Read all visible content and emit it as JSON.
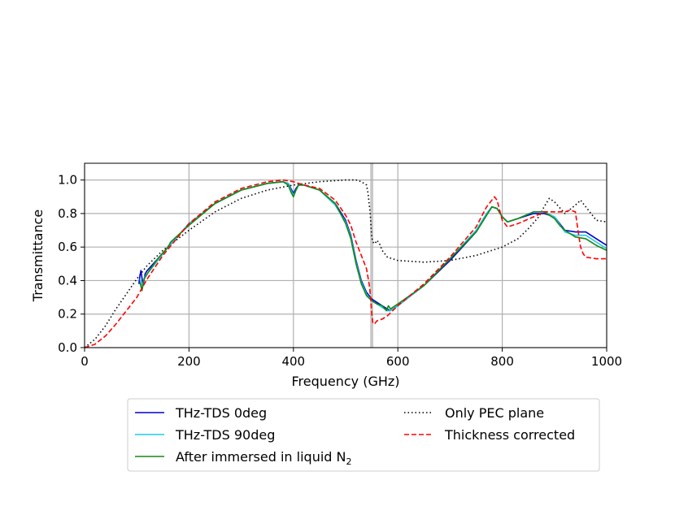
{
  "chart_data": {
    "type": "line",
    "title": "",
    "xlabel": "Frequency (GHz)",
    "ylabel": "Transmittance",
    "xlim": [
      0,
      1000
    ],
    "ylim": [
      0,
      1.1
    ],
    "xticks": [
      "0",
      "200",
      "400",
      "600",
      "800",
      "1000"
    ],
    "yticks": [
      "0.0",
      "0.2",
      "0.4",
      "0.6",
      "0.8",
      "1.0"
    ],
    "grid": true,
    "legend_position": "below",
    "highlight_band_x": [
      547,
      553
    ],
    "series": [
      {
        "name": "THz-TDS 0deg",
        "color": "#0000cd",
        "dash": "solid",
        "x": [
          104,
          106,
          108,
          112,
          116,
          120,
          140,
          160,
          200,
          250,
          300,
          350,
          380,
          390,
          395,
          400,
          405,
          410,
          420,
          450,
          480,
          500,
          510,
          520,
          530,
          540,
          545,
          550,
          560,
          570,
          580,
          585,
          590,
          600,
          650,
          700,
          750,
          770,
          780,
          790,
          800,
          810,
          830,
          860,
          880,
          900,
          920,
          940,
          960,
          980,
          1000
        ],
        "y": [
          0.38,
          0.43,
          0.46,
          0.37,
          0.44,
          0.46,
          0.53,
          0.6,
          0.74,
          0.86,
          0.94,
          0.98,
          0.99,
          0.98,
          0.95,
          0.92,
          0.95,
          0.97,
          0.97,
          0.94,
          0.86,
          0.76,
          0.67,
          0.52,
          0.4,
          0.33,
          0.31,
          0.29,
          0.27,
          0.25,
          0.23,
          0.22,
          0.23,
          0.25,
          0.37,
          0.52,
          0.69,
          0.79,
          0.84,
          0.83,
          0.78,
          0.75,
          0.77,
          0.8,
          0.8,
          0.78,
          0.7,
          0.69,
          0.69,
          0.65,
          0.61
        ]
      },
      {
        "name": "THz-TDS 90deg",
        "color": "#1ec8f0",
        "dash": "solid",
        "x": [
          106,
          110,
          115,
          120,
          140,
          160,
          200,
          250,
          300,
          350,
          380,
          390,
          395,
          400,
          405,
          410,
          420,
          450,
          480,
          500,
          510,
          520,
          530,
          540,
          550,
          560,
          570,
          580,
          585,
          590,
          600,
          650,
          700,
          750,
          770,
          780,
          790,
          800,
          810,
          830,
          860,
          880,
          900,
          920,
          940,
          960,
          980,
          1000
        ],
        "y": [
          0.41,
          0.36,
          0.42,
          0.44,
          0.52,
          0.6,
          0.74,
          0.86,
          0.94,
          0.98,
          0.99,
          0.98,
          0.94,
          0.91,
          0.94,
          0.97,
          0.97,
          0.94,
          0.85,
          0.75,
          0.66,
          0.51,
          0.39,
          0.32,
          0.28,
          0.26,
          0.24,
          0.22,
          0.22,
          0.23,
          0.25,
          0.37,
          0.53,
          0.7,
          0.8,
          0.84,
          0.83,
          0.78,
          0.75,
          0.77,
          0.81,
          0.81,
          0.78,
          0.69,
          0.67,
          0.67,
          0.63,
          0.59
        ]
      },
      {
        "name": "After immersed in liquid N$_2$",
        "legend_label": "After immersed in liquid N",
        "legend_subscript": "2",
        "color": "#138a13",
        "dash": "solid",
        "x": [
          106,
          110,
          114,
          118,
          122,
          140,
          160,
          165,
          200,
          250,
          300,
          350,
          380,
          390,
          395,
          400,
          405,
          410,
          420,
          450,
          480,
          500,
          510,
          520,
          530,
          540,
          550,
          560,
          570,
          578,
          582,
          586,
          590,
          600,
          650,
          700,
          750,
          770,
          780,
          790,
          800,
          810,
          830,
          860,
          880,
          900,
          910,
          920,
          940,
          960,
          980,
          1000
        ],
        "y": [
          0.39,
          0.34,
          0.41,
          0.43,
          0.45,
          0.53,
          0.6,
          0.63,
          0.73,
          0.86,
          0.94,
          0.98,
          0.99,
          0.97,
          0.93,
          0.9,
          0.94,
          0.97,
          0.97,
          0.94,
          0.86,
          0.74,
          0.65,
          0.5,
          0.38,
          0.31,
          0.28,
          0.26,
          0.25,
          0.22,
          0.25,
          0.23,
          0.24,
          0.26,
          0.37,
          0.53,
          0.69,
          0.79,
          0.84,
          0.83,
          0.78,
          0.75,
          0.77,
          0.81,
          0.81,
          0.77,
          0.73,
          0.7,
          0.66,
          0.65,
          0.61,
          0.58
        ]
      },
      {
        "name": "Only PEC plane",
        "color": "#000000",
        "dash": "dotted",
        "x": [
          0,
          20,
          40,
          60,
          80,
          100,
          120,
          150,
          200,
          250,
          300,
          350,
          400,
          450,
          500,
          520,
          530,
          540,
          543,
          547,
          550,
          552,
          556,
          560,
          565,
          570,
          580,
          600,
          650,
          700,
          750,
          800,
          830,
          850,
          870,
          880,
          890,
          900,
          920,
          940,
          950,
          960,
          970,
          980,
          1000
        ],
        "y": [
          0.0,
          0.05,
          0.13,
          0.23,
          0.32,
          0.41,
          0.49,
          0.58,
          0.7,
          0.81,
          0.89,
          0.94,
          0.97,
          0.99,
          1.0,
          1.0,
          0.99,
          0.97,
          0.92,
          0.8,
          0.66,
          0.63,
          0.62,
          0.64,
          0.62,
          0.58,
          0.54,
          0.52,
          0.51,
          0.52,
          0.55,
          0.6,
          0.65,
          0.71,
          0.78,
          0.84,
          0.89,
          0.87,
          0.8,
          0.85,
          0.88,
          0.84,
          0.8,
          0.76,
          0.75
        ]
      },
      {
        "name": "Thickness corrected",
        "color": "#ff0000",
        "dash": "dashed",
        "x": [
          0,
          20,
          40,
          60,
          80,
          100,
          120,
          150,
          200,
          250,
          300,
          350,
          380,
          400,
          420,
          450,
          480,
          500,
          510,
          520,
          530,
          540,
          545,
          548,
          550,
          552,
          555,
          560,
          570,
          580,
          590,
          600,
          650,
          700,
          750,
          770,
          780,
          785,
          790,
          800,
          810,
          830,
          860,
          880,
          900,
          920,
          930,
          940,
          945,
          950,
          955,
          960,
          980,
          1000
        ],
        "y": [
          0.0,
          0.02,
          0.07,
          0.14,
          0.22,
          0.3,
          0.41,
          0.55,
          0.74,
          0.87,
          0.95,
          0.99,
          1.0,
          0.99,
          0.97,
          0.95,
          0.88,
          0.79,
          0.73,
          0.63,
          0.55,
          0.47,
          0.38,
          0.3,
          0.2,
          0.15,
          0.14,
          0.16,
          0.17,
          0.19,
          0.22,
          0.25,
          0.38,
          0.54,
          0.72,
          0.84,
          0.88,
          0.9,
          0.88,
          0.76,
          0.72,
          0.74,
          0.78,
          0.81,
          0.81,
          0.81,
          0.82,
          0.81,
          0.7,
          0.6,
          0.56,
          0.54,
          0.53,
          0.53
        ]
      }
    ],
    "legend": {
      "entries": [
        {
          "series": 0,
          "label": "THz-TDS 0deg",
          "subscript": ""
        },
        {
          "series": 1,
          "label": "THz-TDS 90deg",
          "subscript": ""
        },
        {
          "series": 2,
          "label": "After immersed in liquid N",
          "subscript": "2"
        },
        {
          "series": 3,
          "label": "Only PEC plane",
          "subscript": ""
        },
        {
          "series": 4,
          "label": "Thickness corrected",
          "subscript": ""
        }
      ]
    }
  }
}
